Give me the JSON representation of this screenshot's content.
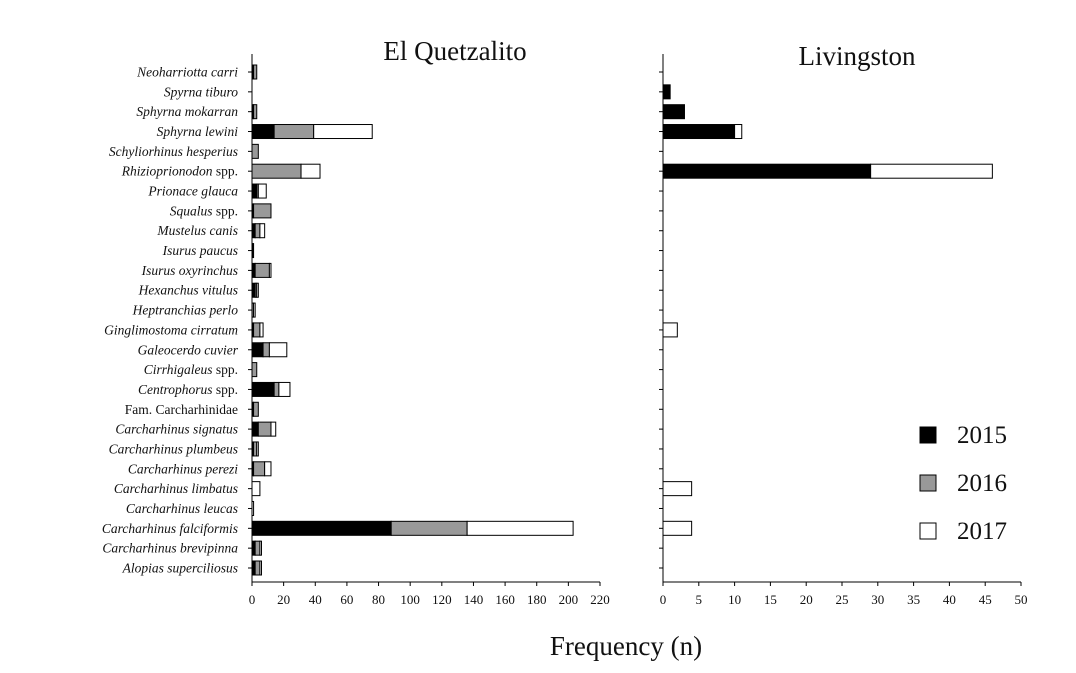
{
  "chart_data": {
    "type": "bar",
    "orientation": "horizontal",
    "stacked": true,
    "xlabel": "Frequency (n)",
    "legend": {
      "placement": "bottom-right",
      "entries": [
        "2015",
        "2016",
        "2017"
      ]
    },
    "colors": {
      "2015": "#000000",
      "2016": "#999999",
      "2017": "#ffffff"
    },
    "categories": [
      "Neoharriotta carri",
      "Spyrna tiburo",
      "Sphyrna mokarran",
      "Sphyrna lewini",
      "Schyliorhinus hesperius",
      "Rhizioprionodon spp.",
      "Prionace glauca",
      "Squalus spp.",
      "Mustelus canis",
      "Isurus paucus",
      "Isurus oxyrinchus",
      "Hexanchus vitulus",
      "Heptranchias perlo",
      "Ginglimostoma cirratum",
      "Galeocerdo cuvier",
      "Cirrhigaleus spp.",
      "Centrophorus spp.",
      "Fam. Carcharhinidae",
      "Carcharhinus signatus",
      "Carcharhinus plumbeus",
      "Carcharhinus perezi",
      "Carcharhinus limbatus",
      "Carcharhinus leucas",
      "Carcharhinus falciformis",
      "Carcharhinus brevipinna",
      "Alopias superciliosus"
    ],
    "panels": [
      {
        "title": "El Quetzalito",
        "xlim": [
          0,
          220
        ],
        "xticks": [
          0,
          20,
          40,
          60,
          80,
          100,
          120,
          140,
          160,
          180,
          200,
          220
        ],
        "series": [
          {
            "name": "2015",
            "values": [
              1,
              0,
              1,
              14,
              0,
              0,
              3,
              1,
              2,
              1,
              2,
              2,
              0,
              1,
              7,
              0,
              14,
              1,
              4,
              1,
              1,
              0,
              0,
              88,
              2,
              2
            ]
          },
          {
            "name": "2016",
            "values": [
              2,
              0,
              2,
              25,
              4,
              31,
              1,
              11,
              3,
              0,
              9,
              1,
              1,
              4,
              4,
              3,
              3,
              3,
              8,
              2,
              7,
              0,
              0,
              48,
              3,
              3
            ]
          },
          {
            "name": "2017",
            "values": [
              0,
              0,
              0,
              37,
              0,
              12,
              5,
              0,
              3,
              0,
              1,
              1,
              1,
              2,
              11,
              0,
              7,
              0,
              3,
              1,
              4,
              5,
              1,
              67,
              1,
              1
            ]
          }
        ]
      },
      {
        "title": "Livingston",
        "xlim": [
          0,
          50
        ],
        "xticks": [
          0,
          5,
          10,
          15,
          20,
          25,
          30,
          35,
          40,
          45,
          50
        ],
        "series": [
          {
            "name": "2015",
            "values": [
              0,
              1,
              3,
              10,
              0,
              29,
              0,
              0,
              0,
              0,
              0,
              0,
              0,
              0,
              0,
              0,
              0,
              0,
              0,
              0,
              0,
              0,
              0,
              0,
              0,
              0
            ]
          },
          {
            "name": "2016",
            "values": [
              0,
              0,
              0,
              0,
              0,
              0,
              0,
              0,
              0,
              0,
              0,
              0,
              0,
              0,
              0,
              0,
              0,
              0,
              0,
              0,
              0,
              0,
              0,
              0,
              0,
              0
            ]
          },
          {
            "name": "2017",
            "values": [
              0,
              0,
              0,
              1,
              0,
              17,
              0,
              0,
              0,
              0,
              0,
              0,
              0,
              2,
              0,
              0,
              0,
              0,
              0,
              0,
              0,
              4,
              0,
              4,
              0,
              0
            ]
          }
        ]
      }
    ]
  }
}
